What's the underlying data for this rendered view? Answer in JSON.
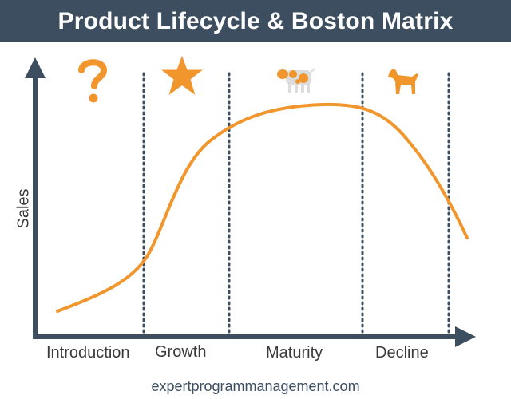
{
  "title": "Product Lifecycle & Boston Matrix",
  "y_axis_label": "Sales",
  "stages": [
    {
      "label": "Introduction",
      "icon": "question-mark-icon"
    },
    {
      "label": "Growth",
      "icon": "star-icon"
    },
    {
      "label": "Maturity",
      "icon": "cash-cow-icon"
    },
    {
      "label": "Decline",
      "icon": "dog-icon"
    }
  ],
  "footer": "expertprogrammanagement.com",
  "colors": {
    "header": "#3d4e61",
    "axis": "#3d4e61",
    "curve": "#f0962d",
    "icon": "#f0962d",
    "divider": "#3d4e61"
  }
}
